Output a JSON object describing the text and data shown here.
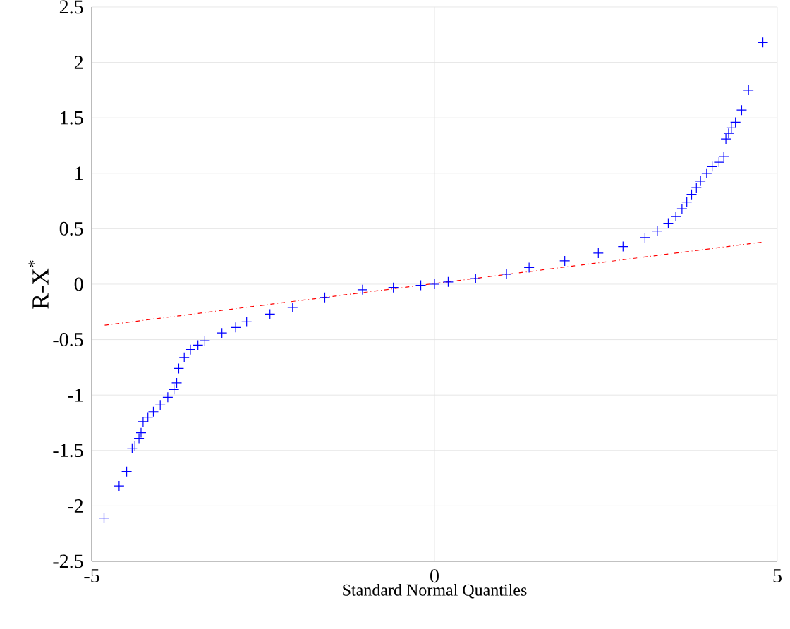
{
  "chart_data": {
    "type": "scatter",
    "xlabel": "Standard Normal Quantiles",
    "ylabel": "R-X$^{*}$",
    "xlim": [
      -5,
      5
    ],
    "ylim": [
      -2.5,
      2.5
    ],
    "xticks": [
      -5,
      0,
      5
    ],
    "yticks": [
      -2.5,
      -2,
      -1.5,
      -1,
      -0.5,
      0,
      0.5,
      1,
      1.5,
      2,
      2.5
    ],
    "grid": true,
    "marker": "cross",
    "series": [
      {
        "color": "#0000ff",
        "x": [
          -4.82,
          -4.6,
          -4.49,
          -4.41,
          -4.37,
          -4.31,
          -4.28,
          -4.25,
          -4.18,
          -4.1,
          -4.0,
          -3.89,
          -3.8,
          -3.76,
          -3.73,
          -3.65,
          -3.56,
          -3.45,
          -3.35,
          -3.1,
          -2.9,
          -2.74,
          -2.4,
          -2.07,
          -1.6,
          -1.05,
          -0.6,
          -0.2,
          0,
          0.2,
          0.6,
          1.05,
          1.38,
          1.9,
          2.39,
          2.75,
          3.07,
          3.25,
          3.41,
          3.52,
          3.61,
          3.68,
          3.75,
          3.82,
          3.88,
          3.97,
          4.05,
          4.15,
          4.22,
          4.25,
          4.29,
          4.33,
          4.39,
          4.48,
          4.58,
          4.79
        ],
        "values": [
          -2.11,
          -1.82,
          -1.69,
          -1.48,
          -1.46,
          -1.39,
          -1.34,
          -1.24,
          -1.2,
          -1.15,
          -1.09,
          -1.02,
          -0.95,
          -0.89,
          -0.76,
          -0.66,
          -0.59,
          -0.55,
          -0.51,
          -0.44,
          -0.39,
          -0.34,
          -0.27,
          -0.21,
          -0.12,
          -0.05,
          -0.03,
          -0.01,
          0,
          0.02,
          0.05,
          0.09,
          0.15,
          0.21,
          0.28,
          0.34,
          0.42,
          0.48,
          0.55,
          0.61,
          0.68,
          0.74,
          0.81,
          0.87,
          0.93,
          1.0,
          1.06,
          1.1,
          1.15,
          1.31,
          1.36,
          1.41,
          1.46,
          1.57,
          1.75,
          2.18
        ]
      },
      {
        "type": "line",
        "color": "#ff0000",
        "line_style": "dashed",
        "marker": "none",
        "x": [
          -4.81,
          4.79
        ],
        "values": [
          -0.37,
          0.38
        ]
      }
    ]
  }
}
